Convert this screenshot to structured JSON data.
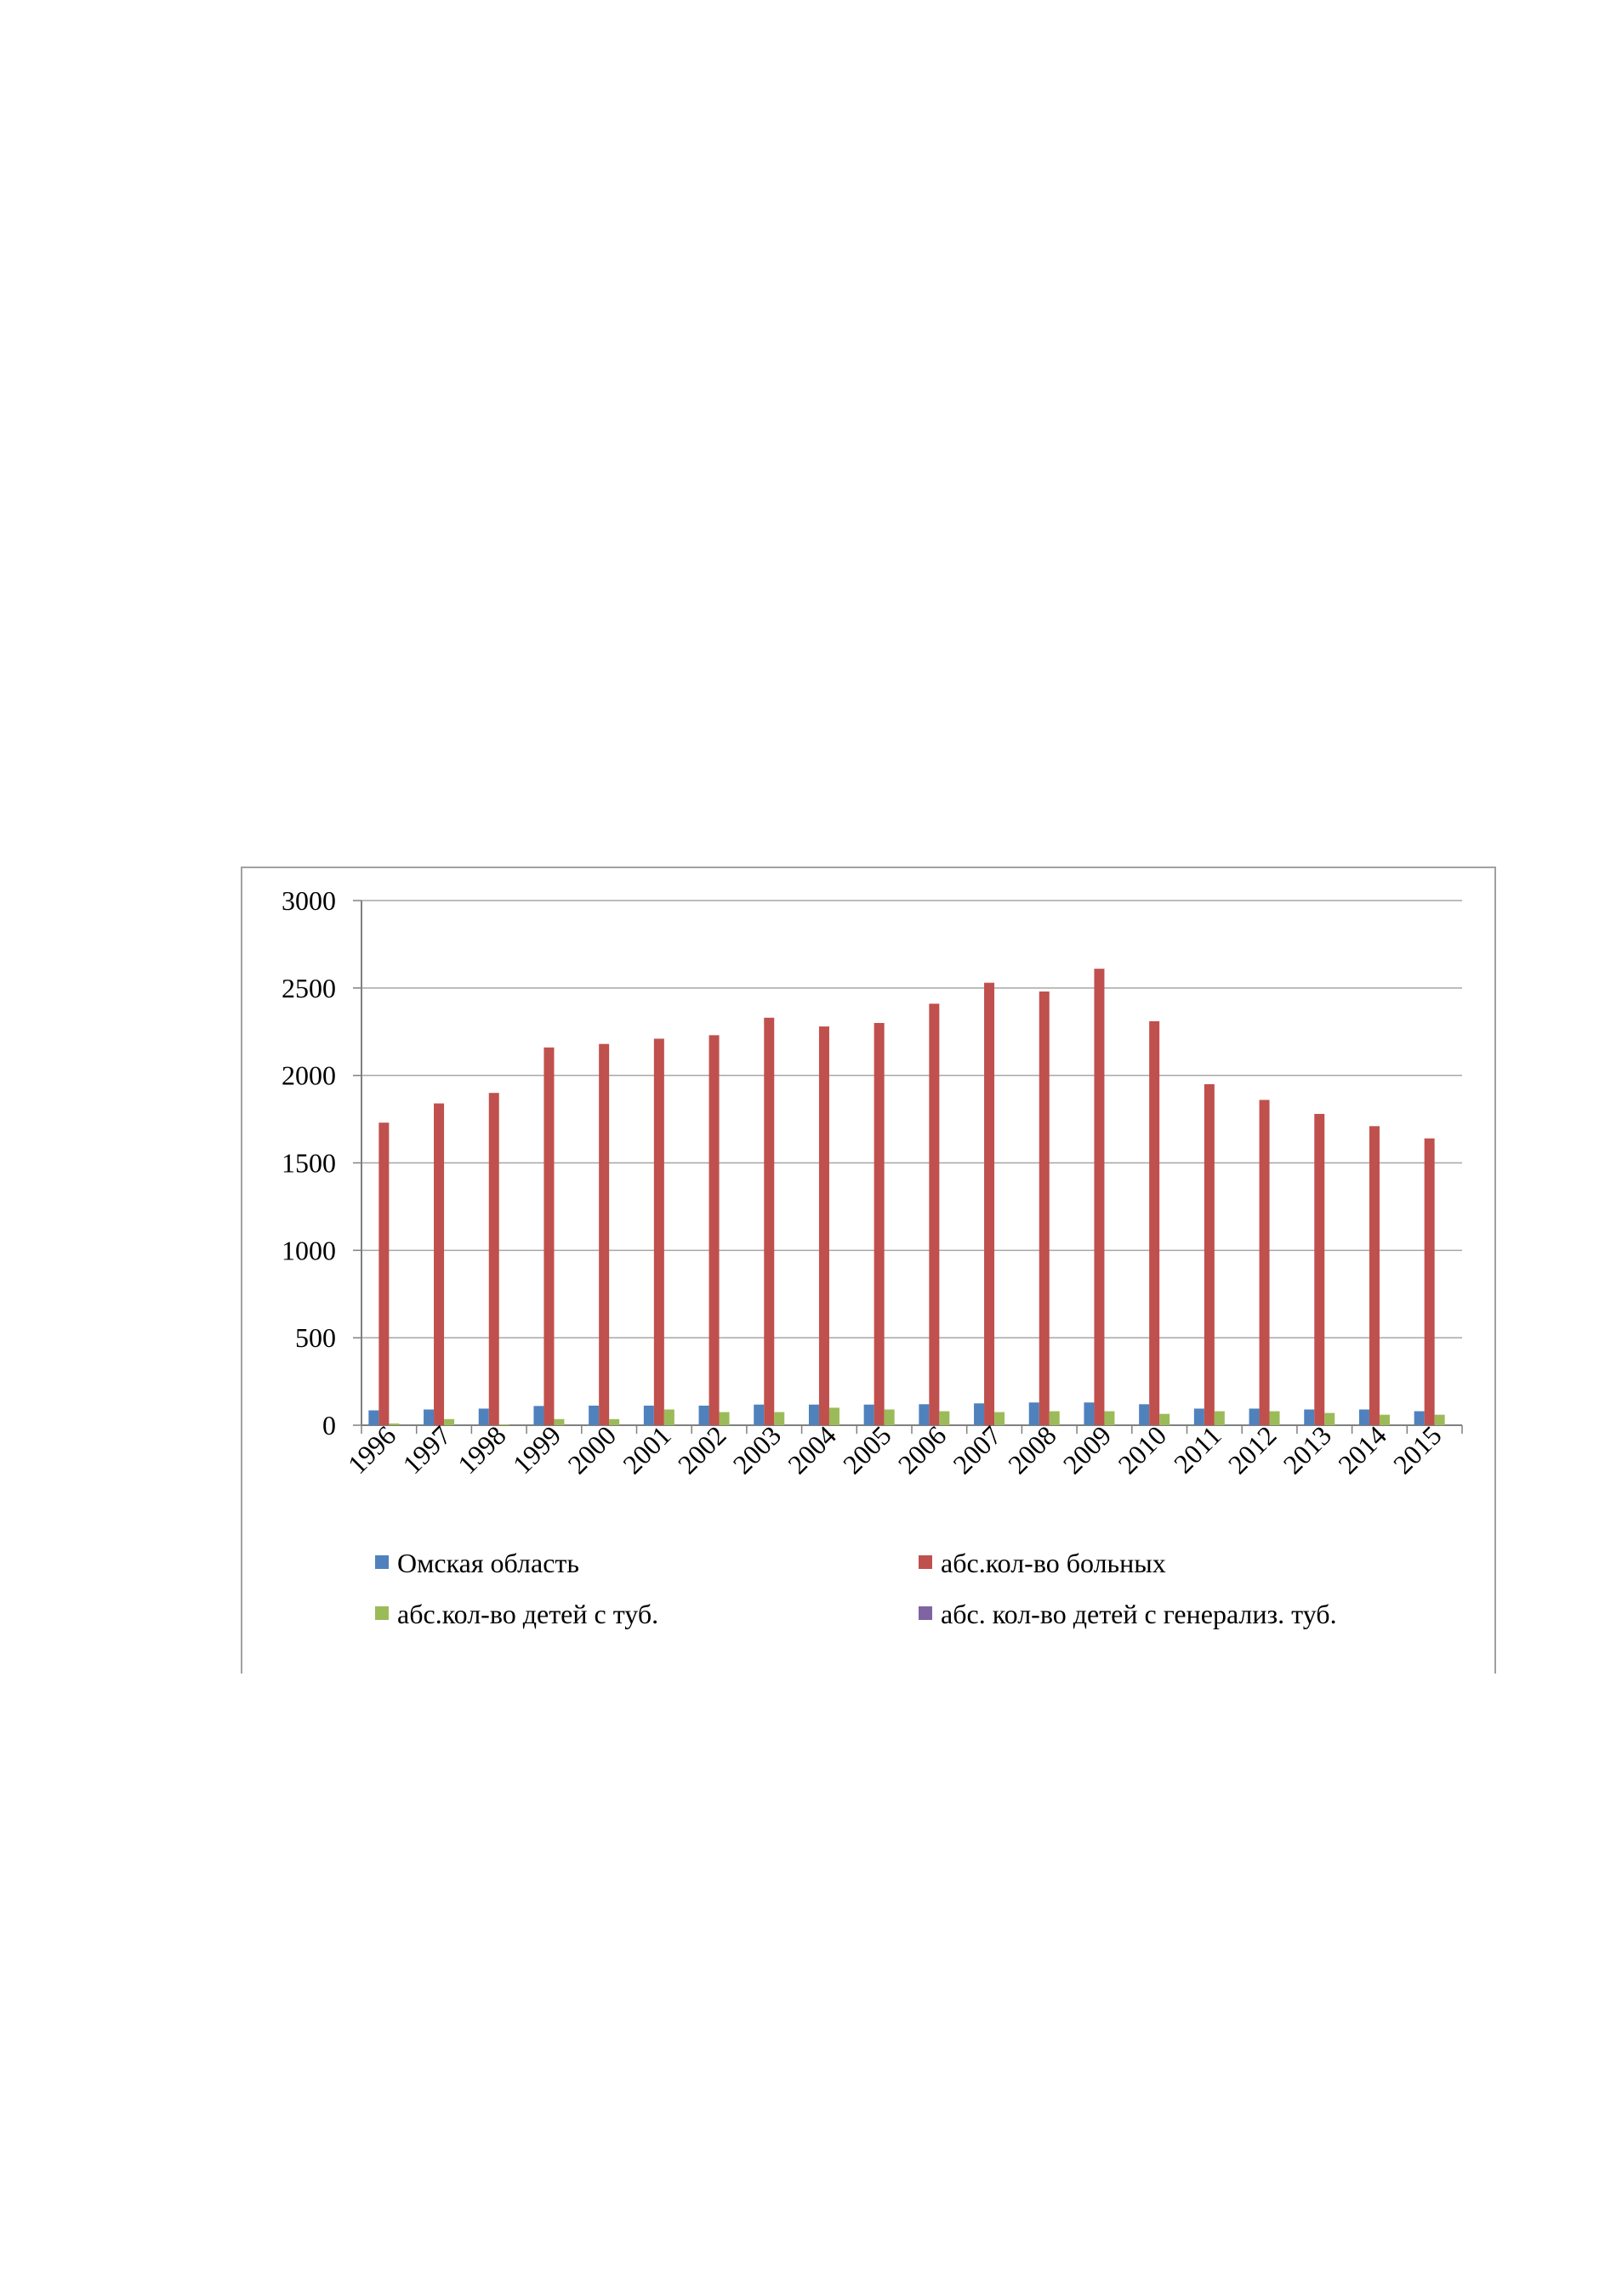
{
  "chart_data": {
    "type": "bar",
    "title": "",
    "xlabel": "",
    "ylabel": "",
    "ylim": [
      0,
      3000
    ],
    "yticks": [
      "0",
      "500",
      "1000",
      "1500",
      "2000",
      "2500",
      "3000"
    ],
    "grid": true,
    "legend_position": "bottom",
    "categories": [
      "1996",
      "1997",
      "1998",
      "1999",
      "2000",
      "2001",
      "2002",
      "2003",
      "2004",
      "2005",
      "2006",
      "2007",
      "2008",
      "2009",
      "2010",
      "2011",
      "2012",
      "2013",
      "2014",
      "2015"
    ],
    "series": [
      {
        "name": "Омская область",
        "color": "#4f81bd",
        "values": [
          85,
          90,
          95,
          110,
          112,
          112,
          112,
          118,
          118,
          118,
          120,
          125,
          130,
          130,
          120,
          95,
          95,
          90,
          90,
          80
        ]
      },
      {
        "name": "абс.кол-во больных",
        "color": "#c0504d",
        "values": [
          1730,
          1840,
          1900,
          2160,
          2180,
          2210,
          2230,
          2330,
          2280,
          2300,
          2410,
          2530,
          2480,
          2610,
          2310,
          1950,
          1860,
          1780,
          1710,
          1640
        ]
      },
      {
        "name": "абс.кол-во детей с туб.",
        "color": "#9bbb59",
        "values": [
          10,
          35,
          5,
          35,
          35,
          90,
          75,
          75,
          100,
          90,
          80,
          75,
          80,
          80,
          65,
          80,
          80,
          70,
          60,
          60
        ]
      },
      {
        "name": "абс. кол-во детей с генерализ. туб.",
        "color": "#8064a2",
        "values": [
          0,
          0,
          0,
          0,
          0,
          0,
          0,
          0,
          0,
          0,
          0,
          0,
          0,
          0,
          0,
          0,
          0,
          0,
          0,
          0
        ]
      }
    ]
  }
}
